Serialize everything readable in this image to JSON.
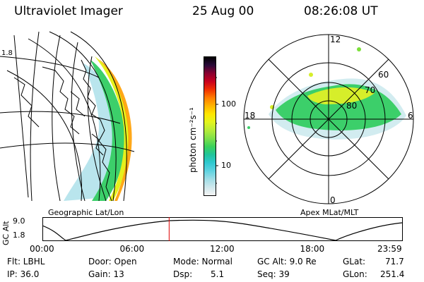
{
  "header": {
    "instrument": "Ultraviolet Imager",
    "date": "25 Aug 00",
    "time": "08:26:08 UT"
  },
  "geo_map": {
    "caption": "Geographic Lat/Lon"
  },
  "polar_map": {
    "caption": "Apex MLat/MLT",
    "mlt_labels": {
      "top": "12",
      "left": "18",
      "right": "6",
      "bottom": "0"
    },
    "lat_labels": [
      "60",
      "70",
      "80"
    ]
  },
  "colorbar": {
    "unit_label": "photon cm⁻²s⁻¹",
    "ticks": [
      "100",
      "10"
    ],
    "colors": [
      "#f4f4f4",
      "#cfe8ec",
      "#9fdde6",
      "#5fd3e0",
      "#2fc8d0",
      "#20c49a",
      "#3ad15a",
      "#7fe04a",
      "#b6ec3a",
      "#e3f51e",
      "#ffe600",
      "#ffb400",
      "#ff7d00",
      "#f03000",
      "#c8001e",
      "#8a0030",
      "#2a0a3a",
      "#000000"
    ]
  },
  "alt_plot": {
    "ylabel": "GC Alt",
    "yticks": [
      "9.0",
      "1.8"
    ],
    "xticks": [
      "00:00",
      "06:00",
      "12:00",
      "18:00",
      "23:59"
    ],
    "current_time_hours": 8.44
  },
  "footer": {
    "flt": "Flt: LBHL",
    "ip": "IP: 36.0",
    "door": "Door: Open",
    "gain": "Gain: 13",
    "mode": "Mode: Normal",
    "dsp_label": "Dsp:",
    "dsp_value": "5.1",
    "gc_alt": "GC Alt: 9.0 Re",
    "seq": "Seq: 39",
    "glat_label": "GLat:",
    "glat_value": "71.7",
    "glon_label": "GLon:",
    "glon_value": "251.4"
  }
}
